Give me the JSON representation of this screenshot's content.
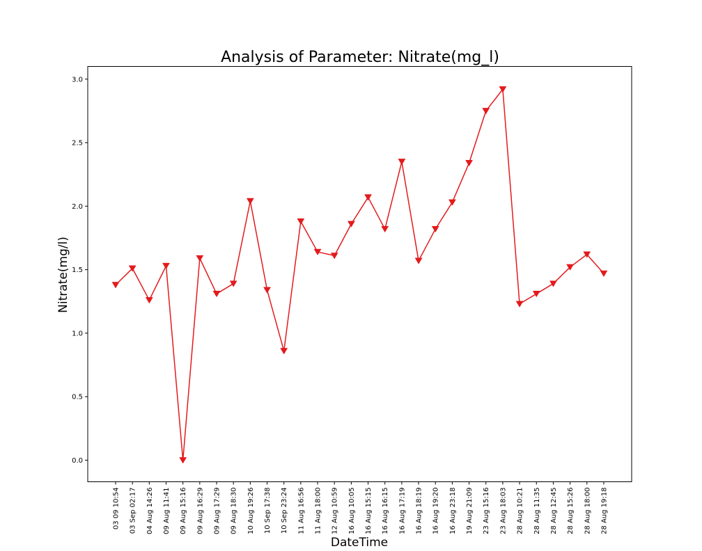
{
  "chart_data": {
    "type": "line",
    "title": "Analysis of Parameter: Nitrate(mg_l)",
    "xlabel": "DateTime",
    "ylabel": "Nitrate(mg/l)",
    "ylim": [
      -0.17,
      3.1
    ],
    "yticks": [
      "0.0",
      "0.5",
      "1.0",
      "1.5",
      "2.0",
      "2.5",
      "3.0"
    ],
    "grid": false,
    "marker": "triangle-down",
    "line_color": "#e31a1c",
    "categories": [
      "03 09 10:54",
      "03 Sep 02:17",
      "04 Aug 14:26",
      "09 Aug 11:41",
      "09 Aug 15:16",
      "09 Aug 16:29",
      "09 Aug 17:29",
      "09 Aug 18:30",
      "10 Aug 19:26",
      "10 Sep 17:38",
      "10 Sep 23:24",
      "11 Aug 16:56",
      "11 Aug 18:00",
      "12 Aug 10:59",
      "16 Aug 10:05",
      "16 Aug 15:15",
      "16 Aug 16:15",
      "16 Aug 17:19",
      "16 Aug 18:19",
      "16 Aug 19:20",
      "16 Aug 23:18",
      "19 Aug 21:09",
      "23 Aug 15:16",
      "23 Aug 18:03",
      "28 Aug 10:21",
      "28 Aug 11:35",
      "28 Aug 12:45",
      "28 Aug 15:26",
      "28 Aug 18:00",
      "28 Aug 19:18"
    ],
    "series": [
      {
        "values": [
          1.38,
          1.51,
          1.26,
          1.53,
          0.0,
          1.59,
          1.31,
          1.39,
          2.04,
          1.34,
          0.86,
          1.88,
          1.64,
          1.61,
          1.86,
          2.07,
          1.82,
          2.35,
          1.57,
          1.82,
          2.03,
          2.34,
          2.75,
          2.92,
          1.23,
          1.31,
          1.39,
          1.52,
          1.62,
          1.47
        ]
      }
    ]
  }
}
